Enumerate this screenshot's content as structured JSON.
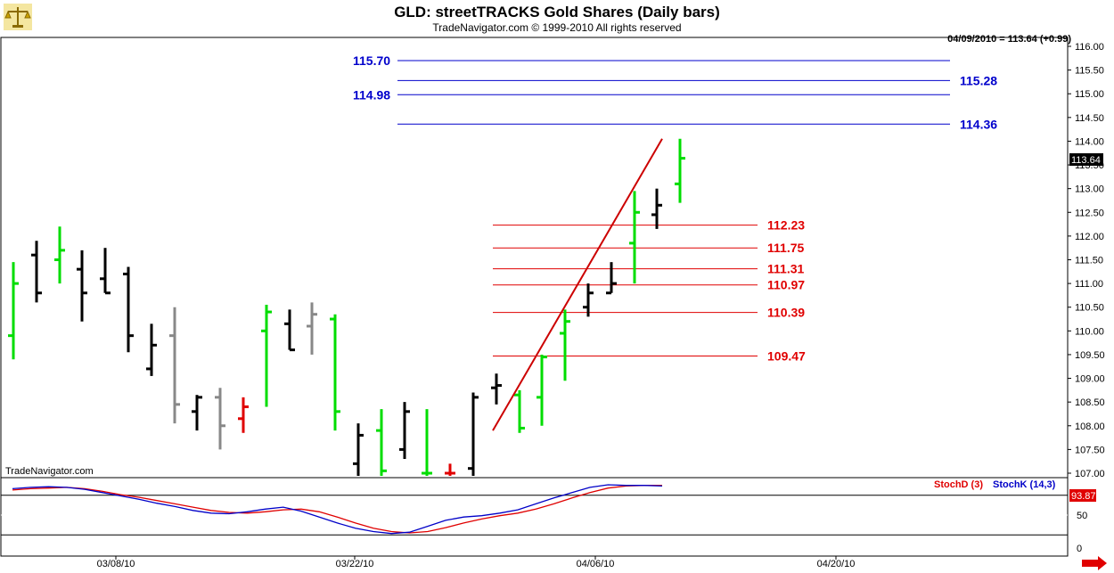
{
  "header": {
    "title": "GLD:  streetTRACKS Gold Shares  (Daily bars)",
    "copyright": "TradeNavigator.com © 1999-2010  All rights reserved",
    "quote": "04/09/2010 = 113.64 (+0.99)",
    "watermark": "TradeNavigator.com"
  },
  "stochastic": {
    "stochD_label": "StochD (3)",
    "stochK_label": "StochK (14,3)",
    "last_value": "93.87",
    "ticks": [
      "50",
      "0"
    ],
    "colors": {
      "stochD": "#e00000",
      "stochK": "#0000c8"
    }
  },
  "x_axis": {
    "labels": [
      "03/08/10",
      "03/22/10",
      "04/06/10",
      "04/20/10"
    ]
  },
  "colors": {
    "up": "#00dd00",
    "down": "#e00000",
    "neutral": "#888888",
    "bar": "#000000",
    "trend": "#cc0000",
    "ext": "#0000cc",
    "retr": "#e00000"
  },
  "chart_data": {
    "type": "ohlc",
    "title": "GLD:  streetTRACKS Gold Shares  (Daily bars)",
    "ylim": [
      106.85,
      116.25
    ],
    "y_ticks": [
      "116.00",
      "115.50",
      "115.00",
      "114.50",
      "114.00",
      "113.50",
      "113.00",
      "112.50",
      "112.00",
      "111.50",
      "111.00",
      "110.50",
      "110.00",
      "109.50",
      "109.00",
      "108.50",
      "108.00",
      "107.50",
      "107.00"
    ],
    "last_price": "113.64",
    "bars": [
      {
        "h": 111.45,
        "l": 109.4,
        "o": 109.9,
        "c": 111.0,
        "color": "up"
      },
      {
        "h": 111.9,
        "l": 110.6,
        "o": 111.6,
        "c": 110.8,
        "color": "black"
      },
      {
        "h": 112.2,
        "l": 111.0,
        "o": 111.5,
        "c": 111.7,
        "color": "up"
      },
      {
        "h": 111.7,
        "l": 110.2,
        "o": 111.3,
        "c": 110.8,
        "color": "black"
      },
      {
        "h": 111.75,
        "l": 110.8,
        "o": 111.1,
        "c": 110.8,
        "color": "black"
      },
      {
        "h": 111.35,
        "l": 109.55,
        "o": 111.2,
        "c": 109.9,
        "color": "black"
      },
      {
        "h": 110.15,
        "l": 109.05,
        "o": 109.2,
        "c": 109.7,
        "color": "black"
      },
      {
        "h": 110.5,
        "l": 108.05,
        "o": 109.9,
        "c": 108.45,
        "color": "neutral"
      },
      {
        "h": 108.65,
        "l": 107.9,
        "o": 108.3,
        "c": 108.6,
        "color": "black"
      },
      {
        "h": 108.8,
        "l": 107.5,
        "o": 108.6,
        "c": 108.0,
        "color": "neutral"
      },
      {
        "h": 108.6,
        "l": 107.85,
        "o": 108.15,
        "c": 108.4,
        "color": "down"
      },
      {
        "h": 110.55,
        "l": 108.4,
        "o": 110.0,
        "c": 110.4,
        "color": "up"
      },
      {
        "h": 110.45,
        "l": 109.6,
        "o": 110.15,
        "c": 109.6,
        "color": "black"
      },
      {
        "h": 110.6,
        "l": 109.5,
        "o": 110.1,
        "c": 110.35,
        "color": "neutral"
      },
      {
        "h": 110.35,
        "l": 107.9,
        "o": 110.25,
        "c": 108.3,
        "color": "up"
      },
      {
        "h": 108.05,
        "l": 106.9,
        "o": 107.2,
        "c": 107.8,
        "color": "black"
      },
      {
        "h": 108.35,
        "l": 106.9,
        "o": 107.9,
        "c": 107.05,
        "color": "up"
      },
      {
        "h": 108.5,
        "l": 107.3,
        "o": 107.5,
        "c": 108.3,
        "color": "black"
      },
      {
        "h": 108.35,
        "l": 106.9,
        "o": 107.0,
        "c": 107.0,
        "color": "up"
      },
      {
        "h": 107.2,
        "l": 106.9,
        "o": 107.0,
        "c": 107.0,
        "color": "down"
      },
      {
        "h": 108.7,
        "l": 106.9,
        "o": 107.1,
        "c": 108.6,
        "color": "black"
      },
      {
        "h": 109.1,
        "l": 108.45,
        "o": 108.8,
        "c": 108.85,
        "color": "black"
      },
      {
        "h": 108.75,
        "l": 107.85,
        "o": 108.65,
        "c": 107.95,
        "color": "up"
      },
      {
        "h": 109.5,
        "l": 108.0,
        "o": 108.6,
        "c": 109.45,
        "color": "up"
      },
      {
        "h": 110.45,
        "l": 108.95,
        "o": 109.95,
        "c": 110.2,
        "color": "up"
      },
      {
        "h": 111.0,
        "l": 110.3,
        "o": 110.5,
        "c": 110.8,
        "color": "black"
      },
      {
        "h": 111.45,
        "l": 110.8,
        "o": 110.8,
        "c": 111.0,
        "color": "black"
      },
      {
        "h": 112.95,
        "l": 111.0,
        "o": 111.85,
        "c": 112.5,
        "color": "up"
      },
      {
        "h": 113.0,
        "l": 112.15,
        "o": 112.45,
        "c": 112.65,
        "color": "black"
      },
      {
        "h": 114.05,
        "l": 112.7,
        "o": 113.1,
        "c": 113.64,
        "color": "up"
      }
    ],
    "trendline": {
      "from": [
        107.9
      ],
      "to": [
        114.05
      ]
    },
    "extension_levels": [
      {
        "value": 115.7,
        "label": "115.70",
        "label_side": "left"
      },
      {
        "value": 115.28,
        "label": "115.28",
        "label_side": "right"
      },
      {
        "value": 114.98,
        "label": "114.98",
        "label_side": "left"
      },
      {
        "value": 114.36,
        "label": "114.36",
        "label_side": "right"
      }
    ],
    "retracement_levels": [
      {
        "value": 112.23,
        "label": "112.23"
      },
      {
        "value": 111.75,
        "label": "111.75"
      },
      {
        "value": 111.31,
        "label": "111.31"
      },
      {
        "value": 110.97,
        "label": "110.97"
      },
      {
        "value": 110.39,
        "label": "110.39"
      },
      {
        "value": 109.47,
        "label": "109.47"
      }
    ],
    "stoch_k": [
      90,
      92,
      93,
      92,
      89,
      84,
      79,
      74,
      68,
      63,
      57,
      53,
      52,
      55,
      59,
      62,
      56,
      47,
      38,
      30,
      25,
      22,
      24,
      33,
      42,
      47,
      49,
      53,
      58,
      67,
      76,
      84,
      92,
      96,
      95,
      95,
      94
    ],
    "stoch_d": [
      88,
      90,
      91,
      92,
      90,
      86,
      81,
      77,
      72,
      67,
      62,
      57,
      54,
      53,
      55,
      58,
      59,
      55,
      47,
      38,
      30,
      25,
      23,
      25,
      31,
      38,
      44,
      49,
      53,
      59,
      67,
      76,
      84,
      91,
      94,
      95,
      95
    ]
  }
}
